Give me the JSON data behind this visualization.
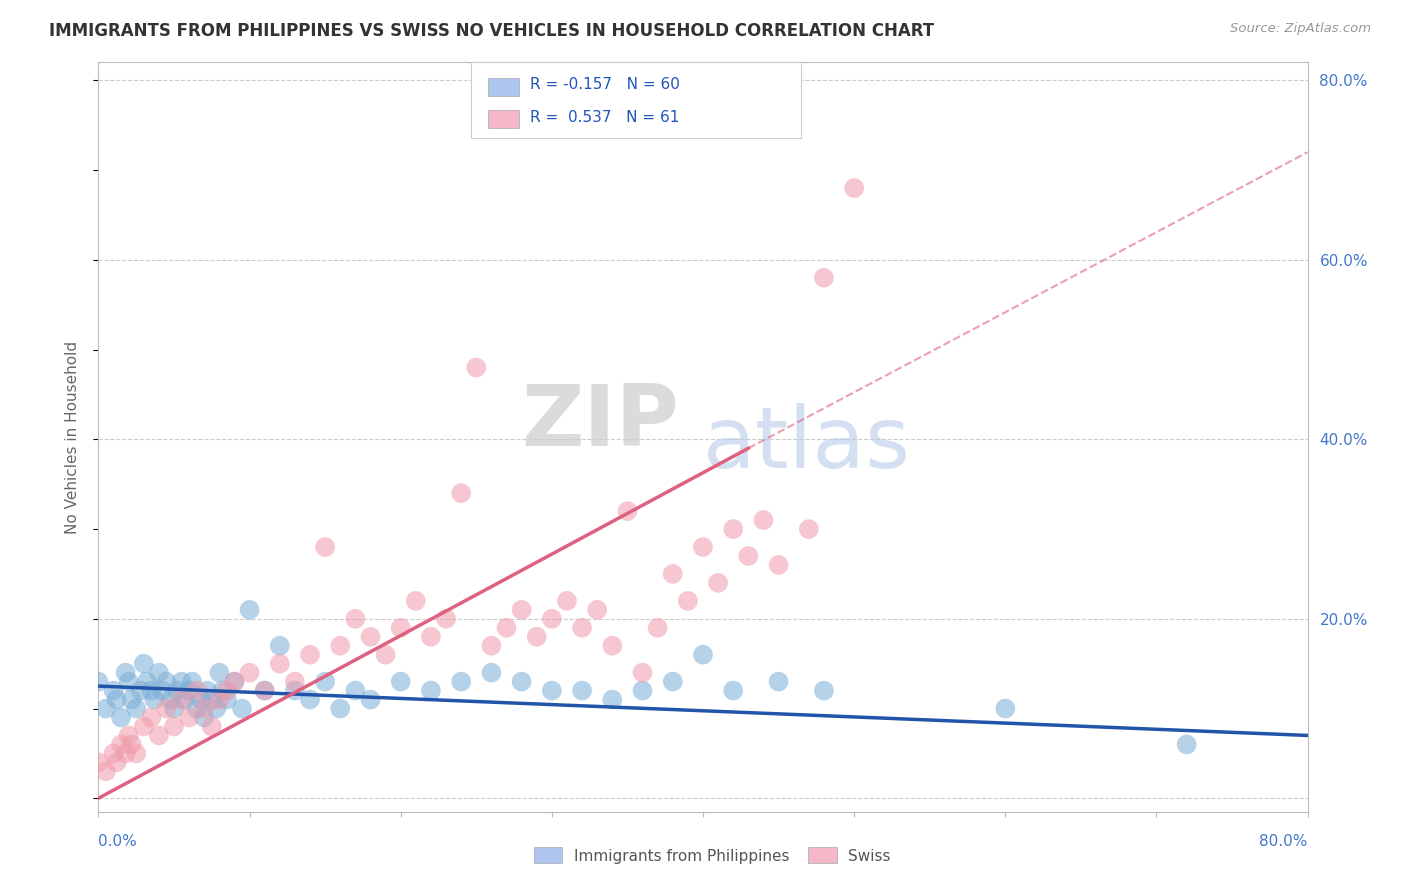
{
  "title": "IMMIGRANTS FROM PHILIPPINES VS SWISS NO VEHICLES IN HOUSEHOLD CORRELATION CHART",
  "source": "Source: ZipAtlas.com",
  "ylabel": "No Vehicles in Household",
  "legend_entries": [
    {
      "r_text": "R = -0.157",
      "n_text": "N = 60",
      "color": "#aec6ef"
    },
    {
      "r_text": "R =  0.537",
      "n_text": "N = 61",
      "color": "#f4b8c8"
    }
  ],
  "legend_labels_bottom": [
    "Immigrants from Philippines",
    "Swiss"
  ],
  "blue_color": "#7aadd6",
  "pink_color": "#f09aaa",
  "blue_line_color": "#2255AA",
  "pink_line_color": "#e06080",
  "watermark_zip": "ZIP",
  "watermark_atlas": "atlas",
  "background_color": "#ffffff",
  "title_fontsize": 12,
  "title_color": "#333333",
  "axis_color": "#bbbbbb",
  "grid_color": "#cccccc",
  "xmin": 0.0,
  "xmax": 0.8,
  "ymin": -0.015,
  "ymax": 0.82,
  "yticks": [
    0.0,
    0.2,
    0.4,
    0.6,
    0.8
  ],
  "yticklabels": [
    "",
    "20.0%",
    "40.0%",
    "60.0%",
    "80.0%"
  ],
  "blue_scatter": {
    "x": [
      0.0,
      0.005,
      0.01,
      0.012,
      0.015,
      0.018,
      0.02,
      0.022,
      0.025,
      0.028,
      0.03,
      0.032,
      0.035,
      0.037,
      0.04,
      0.042,
      0.045,
      0.048,
      0.05,
      0.052,
      0.055,
      0.057,
      0.06,
      0.062,
      0.065,
      0.068,
      0.07,
      0.072,
      0.075,
      0.078,
      0.08,
      0.082,
      0.085,
      0.09,
      0.095,
      0.1,
      0.11,
      0.12,
      0.13,
      0.14,
      0.15,
      0.16,
      0.17,
      0.18,
      0.2,
      0.22,
      0.24,
      0.26,
      0.28,
      0.3,
      0.32,
      0.34,
      0.36,
      0.38,
      0.4,
      0.42,
      0.45,
      0.48,
      0.6,
      0.72
    ],
    "y": [
      0.13,
      0.1,
      0.12,
      0.11,
      0.09,
      0.14,
      0.13,
      0.11,
      0.1,
      0.12,
      0.15,
      0.13,
      0.12,
      0.11,
      0.14,
      0.12,
      0.13,
      0.11,
      0.1,
      0.12,
      0.13,
      0.11,
      0.12,
      0.13,
      0.1,
      0.11,
      0.09,
      0.12,
      0.11,
      0.1,
      0.14,
      0.12,
      0.11,
      0.13,
      0.1,
      0.21,
      0.12,
      0.17,
      0.12,
      0.11,
      0.13,
      0.1,
      0.12,
      0.11,
      0.13,
      0.12,
      0.13,
      0.14,
      0.13,
      0.12,
      0.12,
      0.11,
      0.12,
      0.13,
      0.16,
      0.12,
      0.13,
      0.12,
      0.1,
      0.06
    ]
  },
  "pink_scatter": {
    "x": [
      0.0,
      0.005,
      0.01,
      0.012,
      0.015,
      0.018,
      0.02,
      0.022,
      0.025,
      0.03,
      0.035,
      0.04,
      0.045,
      0.05,
      0.055,
      0.06,
      0.065,
      0.07,
      0.075,
      0.08,
      0.085,
      0.09,
      0.1,
      0.11,
      0.12,
      0.13,
      0.14,
      0.15,
      0.16,
      0.17,
      0.18,
      0.19,
      0.2,
      0.21,
      0.22,
      0.23,
      0.24,
      0.25,
      0.26,
      0.27,
      0.28,
      0.29,
      0.3,
      0.31,
      0.32,
      0.33,
      0.34,
      0.35,
      0.36,
      0.37,
      0.38,
      0.39,
      0.4,
      0.41,
      0.42,
      0.43,
      0.44,
      0.45,
      0.47,
      0.48,
      0.5
    ],
    "y": [
      0.04,
      0.03,
      0.05,
      0.04,
      0.06,
      0.05,
      0.07,
      0.06,
      0.05,
      0.08,
      0.09,
      0.07,
      0.1,
      0.08,
      0.11,
      0.09,
      0.12,
      0.1,
      0.08,
      0.11,
      0.12,
      0.13,
      0.14,
      0.12,
      0.15,
      0.13,
      0.16,
      0.28,
      0.17,
      0.2,
      0.18,
      0.16,
      0.19,
      0.22,
      0.18,
      0.2,
      0.34,
      0.48,
      0.17,
      0.19,
      0.21,
      0.18,
      0.2,
      0.22,
      0.19,
      0.21,
      0.17,
      0.32,
      0.14,
      0.19,
      0.25,
      0.22,
      0.28,
      0.24,
      0.3,
      0.27,
      0.31,
      0.26,
      0.3,
      0.58,
      0.68
    ]
  },
  "blue_line": {
    "x0": 0.0,
    "y0": 0.125,
    "x1": 0.8,
    "y1": 0.07
  },
  "pink_line_solid": {
    "x0": 0.0,
    "y0": 0.0,
    "x1": 0.43,
    "y1": 0.39
  },
  "pink_line_dashed": {
    "x0": 0.43,
    "y0": 0.39,
    "x1": 0.8,
    "y1": 0.72
  }
}
